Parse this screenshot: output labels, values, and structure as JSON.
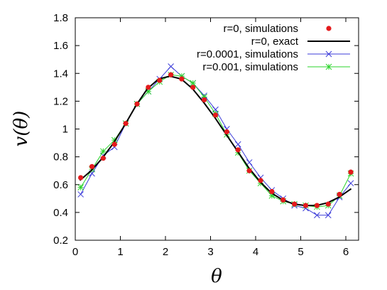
{
  "chart_data": {
    "type": "scatter",
    "xlabel": "θ",
    "ylabel": "v(θ)",
    "xlim": [
      0,
      6.2832
    ],
    "ylim": [
      0.2,
      1.8
    ],
    "xticks": [
      "0",
      "1",
      "2",
      "3",
      "4",
      "5",
      "6"
    ],
    "yticks": [
      "0.2",
      "0.4",
      "0.6",
      "0.8",
      "1",
      "1.2",
      "1.4",
      "1.6",
      "1.8"
    ],
    "legend_position": "top-right",
    "series": [
      {
        "name": "r=0, simulations",
        "style": "points",
        "color": "#e41a1c",
        "x": [
          0.12,
          0.37,
          0.62,
          0.87,
          1.12,
          1.37,
          1.62,
          1.87,
          2.12,
          2.36,
          2.61,
          2.86,
          3.11,
          3.36,
          3.61,
          3.86,
          4.11,
          4.36,
          4.61,
          4.86,
          5.11,
          5.36,
          5.61,
          5.86,
          6.11
        ],
        "y": [
          0.65,
          0.73,
          0.79,
          0.89,
          1.04,
          1.18,
          1.3,
          1.35,
          1.39,
          1.36,
          1.3,
          1.21,
          1.1,
          0.98,
          0.85,
          0.7,
          0.63,
          0.55,
          0.49,
          0.46,
          0.45,
          0.45,
          0.46,
          0.53,
          0.69
        ]
      },
      {
        "name": "r=0, exact",
        "style": "line",
        "color": "#000000",
        "x": [
          0.1,
          0.35,
          0.6,
          0.85,
          1.1,
          1.35,
          1.6,
          1.85,
          2.1,
          2.35,
          2.6,
          2.85,
          3.1,
          3.35,
          3.6,
          3.85,
          4.1,
          4.35,
          4.6,
          4.85,
          5.1,
          5.35,
          5.6,
          5.85,
          6.12
        ],
        "y": [
          0.63,
          0.7,
          0.79,
          0.9,
          1.03,
          1.17,
          1.29,
          1.36,
          1.38,
          1.36,
          1.29,
          1.19,
          1.08,
          0.96,
          0.84,
          0.72,
          0.62,
          0.54,
          0.49,
          0.46,
          0.45,
          0.45,
          0.47,
          0.51,
          0.57
        ]
      },
      {
        "name": "r=0.0001, simulations",
        "style": "line-cross",
        "color": "#3b3bd9",
        "x": [
          0.12,
          0.37,
          0.62,
          0.87,
          1.12,
          1.37,
          1.62,
          1.87,
          2.12,
          2.36,
          2.61,
          2.86,
          3.11,
          3.36,
          3.61,
          3.86,
          4.11,
          4.36,
          4.61,
          4.86,
          5.11,
          5.36,
          5.61,
          5.86,
          6.11
        ],
        "y": [
          0.53,
          0.68,
          0.81,
          0.87,
          1.04,
          1.18,
          1.27,
          1.36,
          1.45,
          1.38,
          1.33,
          1.24,
          1.14,
          1.0,
          0.89,
          0.76,
          0.65,
          0.56,
          0.5,
          0.45,
          0.43,
          0.38,
          0.38,
          0.51,
          0.61
        ]
      },
      {
        "name": "r=0.001, simulations",
        "style": "line-star",
        "color": "#2bd42b",
        "x": [
          0.12,
          0.37,
          0.62,
          0.87,
          1.12,
          1.37,
          1.62,
          1.87,
          2.12,
          2.36,
          2.61,
          2.86,
          3.11,
          3.36,
          3.61,
          3.86,
          4.11,
          4.36,
          4.61,
          4.86,
          5.11,
          5.36,
          5.61,
          5.86,
          6.11
        ],
        "y": [
          0.58,
          0.71,
          0.84,
          0.92,
          1.04,
          1.18,
          1.27,
          1.34,
          1.39,
          1.38,
          1.33,
          1.23,
          1.11,
          0.96,
          0.83,
          0.7,
          0.61,
          0.52,
          0.48,
          0.46,
          0.45,
          0.44,
          0.45,
          0.52,
          0.68
        ]
      }
    ]
  }
}
